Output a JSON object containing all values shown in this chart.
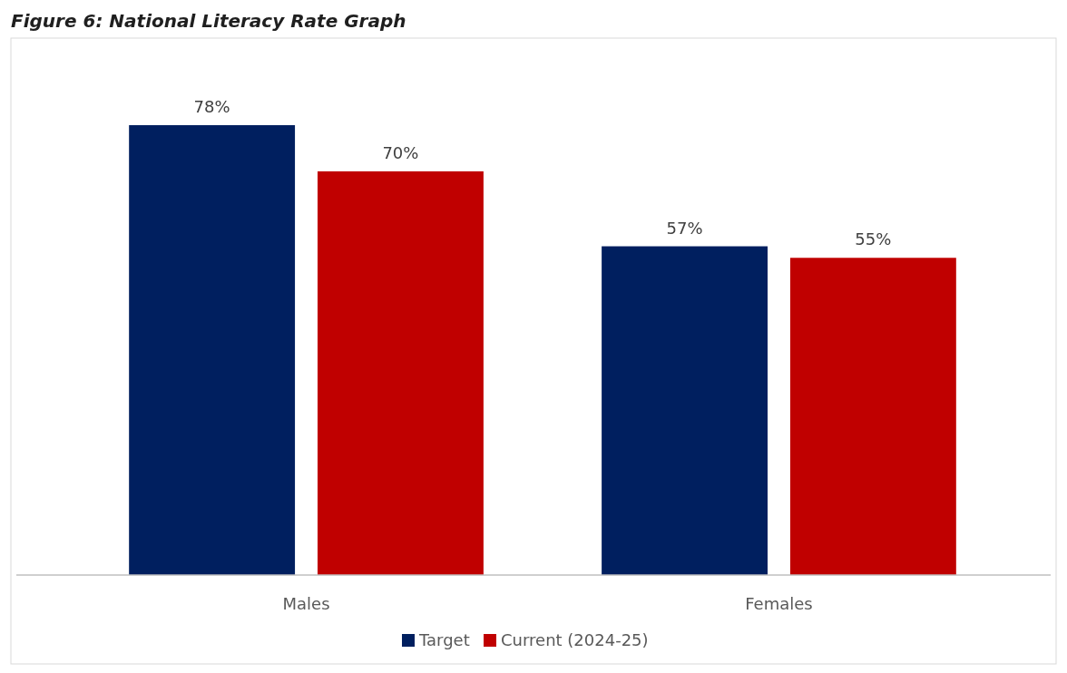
{
  "chart_data": {
    "type": "bar",
    "title": "Figure 6: National Literacy Rate Graph",
    "categories": [
      "Males",
      "Females"
    ],
    "series": [
      {
        "name": "Target",
        "color": "#001f5f",
        "values": [
          78,
          57
        ],
        "value_labels": [
          "78%",
          "57%"
        ]
      },
      {
        "name": "Current (2024-25)",
        "color": "#c00000",
        "values": [
          70,
          55
        ],
        "value_labels": [
          "70%",
          "55%"
        ]
      }
    ],
    "tick_labels": "x",
    "legend": "bottom"
  }
}
